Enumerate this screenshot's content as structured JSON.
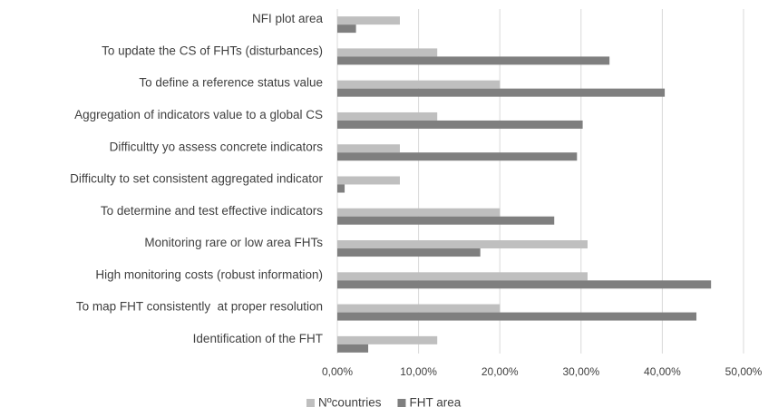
{
  "chart_data": {
    "type": "bar",
    "orientation": "horizontal",
    "categories": [
      "NFI plot area",
      "To update the CS of FHTs (disturbances)",
      "To define a reference status value",
      "Aggregation of indicators value to a global CS",
      "Difficultty yo assess concrete indicators",
      "Difficulty to set consistent aggregated indicator",
      "To determine and test effective indicators",
      "Monitoring rare or low area FHTs",
      "High monitoring costs (robust information)",
      "To map FHT consistently  at proper resolution",
      "Identification of the FHT"
    ],
    "series": [
      {
        "name": "Nºcountries",
        "color": "#bfbfbf",
        "values": [
          7.7,
          12.3,
          20.0,
          12.3,
          7.7,
          7.7,
          20.0,
          30.8,
          30.8,
          20.0,
          12.3
        ]
      },
      {
        "name": "FHT area",
        "color": "#7f7f7f",
        "values": [
          2.3,
          33.5,
          40.3,
          30.2,
          29.5,
          0.9,
          26.7,
          17.6,
          46.0,
          44.2,
          3.8
        ]
      }
    ],
    "xlim": [
      0,
      50
    ],
    "xticks": [
      {
        "value": 0,
        "label": "0,00%"
      },
      {
        "value": 10,
        "label": "10,00%"
      },
      {
        "value": 20,
        "label": "20,00%"
      },
      {
        "value": 30,
        "label": "30,00%"
      },
      {
        "value": 40,
        "label": "40,00%"
      },
      {
        "value": 50,
        "label": "50,00%"
      }
    ],
    "grid": true,
    "legend": "bottom"
  }
}
